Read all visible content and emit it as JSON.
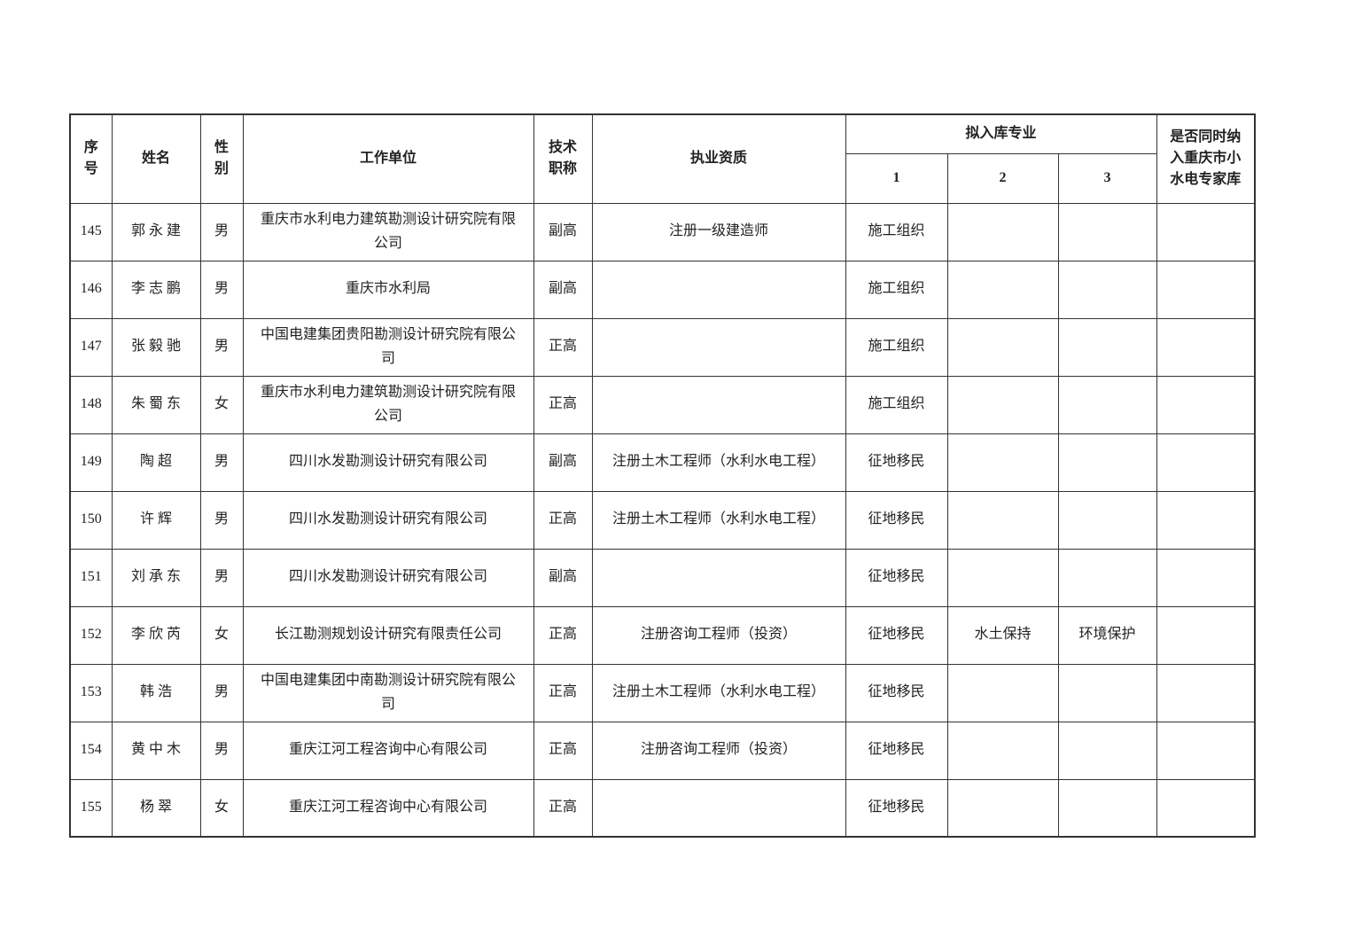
{
  "page": {
    "background": "#ffffff",
    "text_color": "#222222",
    "border_color": "#333333"
  },
  "table": {
    "headers": {
      "seq": "序号",
      "name": "姓名",
      "gender": "性别",
      "unit": "工作单位",
      "title": "技术职称",
      "qual": "执业资质",
      "specialty_group": "拟入库专业",
      "specialty_cols": [
        "1",
        "2",
        "3"
      ],
      "hydro": "是否同时纳入重庆市小水电专家库"
    },
    "rows": [
      {
        "seq": "145",
        "name": "郭永建",
        "gender": "男",
        "unit": "重庆市水利电力建筑勘测设计研究院有限公司",
        "title": "副高",
        "qual": "注册一级建造师",
        "s1": "施工组织",
        "s2": "",
        "s3": "",
        "hydro": ""
      },
      {
        "seq": "146",
        "name": "李志鹏",
        "gender": "男",
        "unit": "重庆市水利局",
        "title": "副高",
        "qual": "",
        "s1": "施工组织",
        "s2": "",
        "s3": "",
        "hydro": ""
      },
      {
        "seq": "147",
        "name": "张毅驰",
        "gender": "男",
        "unit": "中国电建集团贵阳勘测设计研究院有限公司",
        "title": "正高",
        "qual": "",
        "s1": "施工组织",
        "s2": "",
        "s3": "",
        "hydro": ""
      },
      {
        "seq": "148",
        "name": "朱蜀东",
        "gender": "女",
        "unit": "重庆市水利电力建筑勘测设计研究院有限公司",
        "title": "正高",
        "qual": "",
        "s1": "施工组织",
        "s2": "",
        "s3": "",
        "hydro": ""
      },
      {
        "seq": "149",
        "name": "陶超",
        "gender": "男",
        "unit": "四川水发勘测设计研究有限公司",
        "title": "副高",
        "qual": "注册土木工程师（水利水电工程）",
        "s1": "征地移民",
        "s2": "",
        "s3": "",
        "hydro": ""
      },
      {
        "seq": "150",
        "name": "许辉",
        "gender": "男",
        "unit": "四川水发勘测设计研究有限公司",
        "title": "正高",
        "qual": "注册土木工程师（水利水电工程）",
        "s1": "征地移民",
        "s2": "",
        "s3": "",
        "hydro": ""
      },
      {
        "seq": "151",
        "name": "刘承东",
        "gender": "男",
        "unit": "四川水发勘测设计研究有限公司",
        "title": "副高",
        "qual": "",
        "s1": "征地移民",
        "s2": "",
        "s3": "",
        "hydro": ""
      },
      {
        "seq": "152",
        "name": "李欣芮",
        "gender": "女",
        "unit": "长江勘测规划设计研究有限责任公司",
        "title": "正高",
        "qual": "注册咨询工程师（投资）",
        "s1": "征地移民",
        "s2": "水土保持",
        "s3": "环境保护",
        "hydro": ""
      },
      {
        "seq": "153",
        "name": "韩浩",
        "gender": "男",
        "unit": "中国电建集团中南勘测设计研究院有限公司",
        "title": "正高",
        "qual": "注册土木工程师（水利水电工程）",
        "s1": "征地移民",
        "s2": "",
        "s3": "",
        "hydro": ""
      },
      {
        "seq": "154",
        "name": "黄中木",
        "gender": "男",
        "unit": "重庆江河工程咨询中心有限公司",
        "title": "正高",
        "qual": "注册咨询工程师（投资）",
        "s1": "征地移民",
        "s2": "",
        "s3": "",
        "hydro": ""
      },
      {
        "seq": "155",
        "name": "杨翠",
        "gender": "女",
        "unit": "重庆江河工程咨询中心有限公司",
        "title": "正高",
        "qual": "",
        "s1": "征地移民",
        "s2": "",
        "s3": "",
        "hydro": ""
      }
    ]
  }
}
